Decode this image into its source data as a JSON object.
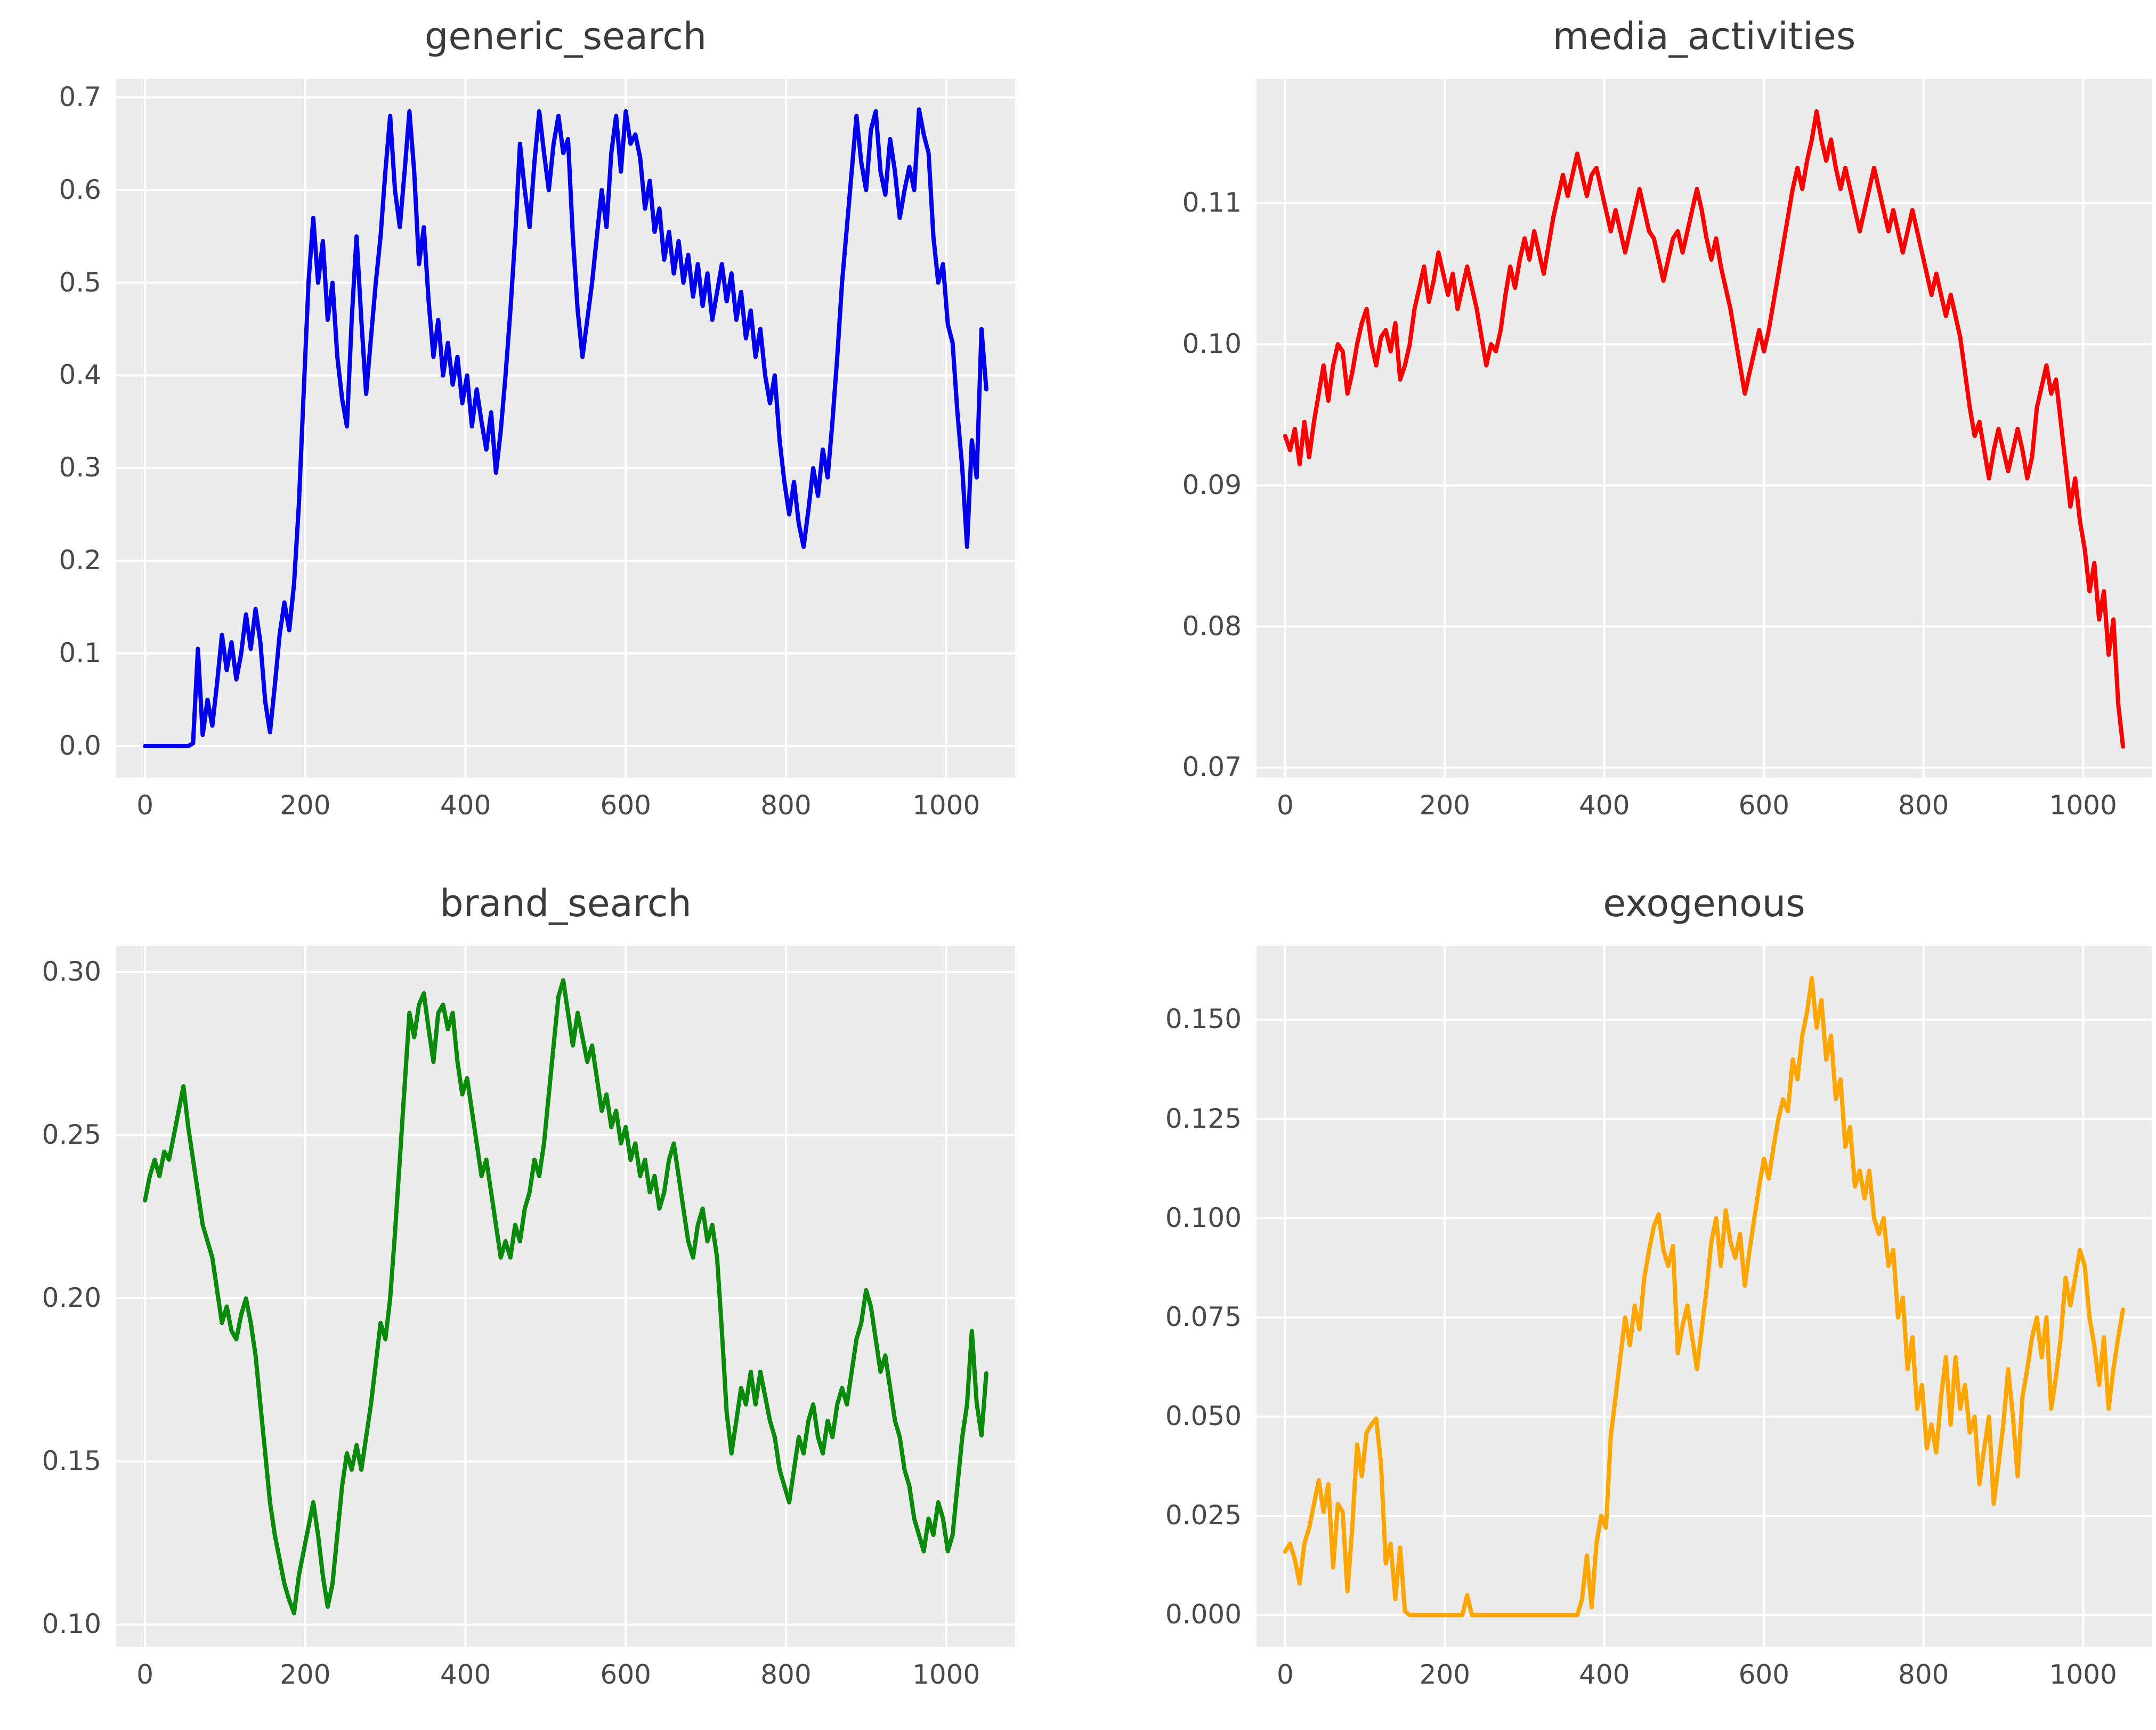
{
  "figure": {
    "background": "#ffffff",
    "plot_background": "#ebebeb",
    "grid_color": "#ffffff",
    "text_color": "#3b3b3b",
    "tick_color": "#494949"
  },
  "chart_data": [
    {
      "type": "line",
      "title": "generic_search",
      "color": "#0000ee",
      "xlabel": "",
      "ylabel": "",
      "legend": null,
      "grid": true,
      "x_start": 0,
      "x_step": 6,
      "xlim": [
        -36,
        1086
      ],
      "ylim": [
        -0.034,
        0.72
      ],
      "xtick_values": [
        0,
        200,
        400,
        600,
        800,
        1000
      ],
      "xtick_labels": [
        "0",
        "200",
        "400",
        "600",
        "800",
        "1000"
      ],
      "ytick_values": [
        0.0,
        0.1,
        0.2,
        0.3,
        0.4,
        0.5,
        0.6,
        0.7
      ],
      "ytick_labels": [
        "0.0",
        "0.1",
        "0.2",
        "0.3",
        "0.4",
        "0.5",
        "0.6",
        "0.7"
      ],
      "values": [
        0,
        0,
        0,
        0,
        0,
        0,
        0,
        0,
        0,
        0,
        0.003,
        0.105,
        0.012,
        0.05,
        0.022,
        0.068,
        0.12,
        0.082,
        0.112,
        0.072,
        0.1,
        0.142,
        0.105,
        0.148,
        0.112,
        0.048,
        0.015,
        0.065,
        0.12,
        0.155,
        0.125,
        0.175,
        0.26,
        0.38,
        0.5,
        0.57,
        0.5,
        0.545,
        0.46,
        0.5,
        0.42,
        0.375,
        0.345,
        0.46,
        0.55,
        0.46,
        0.38,
        0.44,
        0.5,
        0.55,
        0.62,
        0.68,
        0.6,
        0.56,
        0.62,
        0.685,
        0.62,
        0.52,
        0.56,
        0.48,
        0.42,
        0.46,
        0.4,
        0.435,
        0.39,
        0.42,
        0.37,
        0.4,
        0.345,
        0.385,
        0.35,
        0.32,
        0.36,
        0.295,
        0.34,
        0.4,
        0.47,
        0.55,
        0.65,
        0.6,
        0.56,
        0.63,
        0.685,
        0.64,
        0.6,
        0.65,
        0.68,
        0.64,
        0.655,
        0.55,
        0.47,
        0.42,
        0.46,
        0.5,
        0.55,
        0.6,
        0.56,
        0.64,
        0.68,
        0.62,
        0.685,
        0.65,
        0.66,
        0.635,
        0.58,
        0.61,
        0.555,
        0.58,
        0.525,
        0.555,
        0.51,
        0.545,
        0.5,
        0.53,
        0.485,
        0.52,
        0.475,
        0.51,
        0.46,
        0.49,
        0.52,
        0.48,
        0.51,
        0.46,
        0.49,
        0.44,
        0.47,
        0.42,
        0.45,
        0.4,
        0.37,
        0.4,
        0.33,
        0.285,
        0.25,
        0.285,
        0.24,
        0.215,
        0.255,
        0.3,
        0.27,
        0.32,
        0.29,
        0.35,
        0.42,
        0.5,
        0.56,
        0.62,
        0.68,
        0.63,
        0.6,
        0.665,
        0.685,
        0.62,
        0.595,
        0.655,
        0.62,
        0.57,
        0.6,
        0.625,
        0.6,
        0.687,
        0.66,
        0.64,
        0.55,
        0.5,
        0.52,
        0.455,
        0.435,
        0.36,
        0.3,
        0.215,
        0.33,
        0.29,
        0.45,
        0.385
      ]
    },
    {
      "type": "line",
      "title": "media_activities",
      "color": "#ff0000",
      "xlabel": "",
      "ylabel": "",
      "legend": null,
      "grid": true,
      "x_start": 0,
      "x_step": 6,
      "xlim": [
        -36,
        1086
      ],
      "ylim": [
        0.0693,
        0.1188
      ],
      "xtick_values": [
        0,
        200,
        400,
        600,
        800,
        1000
      ],
      "xtick_labels": [
        "0",
        "200",
        "400",
        "600",
        "800",
        "1000"
      ],
      "ytick_values": [
        0.07,
        0.08,
        0.09,
        0.1,
        0.11
      ],
      "ytick_labels": [
        "0.07",
        "0.08",
        "0.09",
        "0.10",
        "0.11"
      ],
      "values": [
        0.0935,
        0.0925,
        0.094,
        0.0915,
        0.0945,
        0.092,
        0.0945,
        0.0965,
        0.0985,
        0.096,
        0.0985,
        0.1,
        0.0995,
        0.0965,
        0.098,
        0.1,
        0.1015,
        0.1025,
        0.1,
        0.0985,
        0.1005,
        0.101,
        0.0995,
        0.1015,
        0.0975,
        0.0985,
        0.1,
        0.1025,
        0.104,
        0.1055,
        0.103,
        0.1045,
        0.1065,
        0.105,
        0.1035,
        0.105,
        0.1025,
        0.104,
        0.1055,
        0.104,
        0.1025,
        0.1005,
        0.0985,
        0.1,
        0.0995,
        0.101,
        0.1035,
        0.1055,
        0.104,
        0.106,
        0.1075,
        0.106,
        0.108,
        0.1065,
        0.105,
        0.107,
        0.109,
        0.1105,
        0.112,
        0.1105,
        0.112,
        0.1135,
        0.112,
        0.1105,
        0.112,
        0.1125,
        0.111,
        0.1095,
        0.108,
        0.1095,
        0.108,
        0.1065,
        0.108,
        0.1095,
        0.111,
        0.1095,
        0.108,
        0.1075,
        0.106,
        0.1045,
        0.106,
        0.1075,
        0.108,
        0.1065,
        0.108,
        0.1095,
        0.111,
        0.1095,
        0.1075,
        0.106,
        0.1075,
        0.1055,
        0.104,
        0.1025,
        0.1005,
        0.0985,
        0.0965,
        0.098,
        0.0995,
        0.101,
        0.0995,
        0.101,
        0.103,
        0.105,
        0.107,
        0.109,
        0.111,
        0.1125,
        0.111,
        0.113,
        0.1145,
        0.1165,
        0.1145,
        0.113,
        0.1145,
        0.1125,
        0.111,
        0.1125,
        0.111,
        0.1095,
        0.108,
        0.1095,
        0.111,
        0.1125,
        0.111,
        0.1095,
        0.108,
        0.1095,
        0.108,
        0.1065,
        0.108,
        0.1095,
        0.108,
        0.1065,
        0.105,
        0.1035,
        0.105,
        0.1035,
        0.102,
        0.1035,
        0.102,
        0.1005,
        0.098,
        0.0955,
        0.0935,
        0.0945,
        0.0925,
        0.0905,
        0.0925,
        0.094,
        0.0925,
        0.091,
        0.0925,
        0.094,
        0.0925,
        0.0905,
        0.092,
        0.0955,
        0.097,
        0.0985,
        0.0965,
        0.0975,
        0.0945,
        0.0915,
        0.0885,
        0.0905,
        0.0875,
        0.0855,
        0.0825,
        0.0845,
        0.0805,
        0.0825,
        0.078,
        0.0805,
        0.0745,
        0.0715
      ]
    },
    {
      "type": "line",
      "title": "brand_search",
      "color": "#0a8a0a",
      "xlabel": "",
      "ylabel": "",
      "legend": null,
      "grid": true,
      "x_start": 0,
      "x_step": 6,
      "xlim": [
        -36,
        1086
      ],
      "ylim": [
        0.0932,
        0.308
      ],
      "xtick_values": [
        0,
        200,
        400,
        600,
        800,
        1000
      ],
      "xtick_labels": [
        "0",
        "200",
        "400",
        "600",
        "800",
        "1000"
      ],
      "ytick_values": [
        0.1,
        0.15,
        0.2,
        0.25,
        0.3
      ],
      "ytick_labels": [
        "0.10",
        "0.15",
        "0.20",
        "0.25",
        "0.30"
      ],
      "values": [
        0.23,
        0.2375,
        0.2425,
        0.2375,
        0.245,
        0.2425,
        0.25,
        0.2575,
        0.265,
        0.2525,
        0.2425,
        0.2325,
        0.2225,
        0.2175,
        0.2125,
        0.2025,
        0.1925,
        0.1975,
        0.19,
        0.1875,
        0.195,
        0.2,
        0.1925,
        0.1825,
        0.1675,
        0.1525,
        0.1375,
        0.1275,
        0.12,
        0.1125,
        0.1075,
        0.1035,
        0.115,
        0.1225,
        0.13,
        0.1375,
        0.1275,
        0.115,
        0.1055,
        0.1125,
        0.1275,
        0.1425,
        0.1525,
        0.1475,
        0.155,
        0.1475,
        0.1575,
        0.1675,
        0.18,
        0.1925,
        0.1875,
        0.2,
        0.22,
        0.2425,
        0.265,
        0.2875,
        0.28,
        0.29,
        0.2935,
        0.2825,
        0.2725,
        0.2875,
        0.29,
        0.2825,
        0.2875,
        0.2725,
        0.2625,
        0.2675,
        0.2575,
        0.2475,
        0.2375,
        0.2425,
        0.2325,
        0.2225,
        0.2125,
        0.2175,
        0.2125,
        0.2225,
        0.2175,
        0.2275,
        0.2325,
        0.2425,
        0.2375,
        0.2475,
        0.2625,
        0.2775,
        0.2925,
        0.2975,
        0.2875,
        0.2775,
        0.2875,
        0.28,
        0.2725,
        0.2775,
        0.2675,
        0.2575,
        0.2625,
        0.2525,
        0.2575,
        0.2475,
        0.2525,
        0.2425,
        0.2475,
        0.2375,
        0.2425,
        0.2325,
        0.2375,
        0.2275,
        0.2325,
        0.2425,
        0.2475,
        0.2375,
        0.2275,
        0.2175,
        0.2125,
        0.2225,
        0.2275,
        0.2175,
        0.2225,
        0.2125,
        0.19,
        0.165,
        0.1525,
        0.1625,
        0.1725,
        0.1675,
        0.1775,
        0.1675,
        0.1775,
        0.17,
        0.1625,
        0.1575,
        0.1475,
        0.1425,
        0.1375,
        0.1475,
        0.1575,
        0.1525,
        0.1625,
        0.1675,
        0.1575,
        0.1525,
        0.1625,
        0.1575,
        0.1675,
        0.1725,
        0.1675,
        0.1775,
        0.1875,
        0.1925,
        0.2025,
        0.1975,
        0.1875,
        0.1775,
        0.1825,
        0.1725,
        0.1625,
        0.1575,
        0.1475,
        0.1425,
        0.1325,
        0.1275,
        0.1225,
        0.1325,
        0.1275,
        0.1375,
        0.1325,
        0.1225,
        0.1275,
        0.1425,
        0.1575,
        0.1675,
        0.19,
        0.168,
        0.158,
        0.177
      ]
    },
    {
      "type": "line",
      "title": "exogenous",
      "color": "#ffa500",
      "xlabel": "",
      "ylabel": "",
      "legend": null,
      "grid": true,
      "x_start": 0,
      "x_step": 6,
      "xlim": [
        -36,
        1086
      ],
      "ylim": [
        -0.008,
        0.1686
      ],
      "xtick_values": [
        0,
        200,
        400,
        600,
        800,
        1000
      ],
      "xtick_labels": [
        "0",
        "200",
        "400",
        "600",
        "800",
        "1000"
      ],
      "ytick_values": [
        0.0,
        0.025,
        0.05,
        0.075,
        0.1,
        0.125,
        0.15
      ],
      "ytick_labels": [
        "0.000",
        "0.025",
        "0.050",
        "0.075",
        "0.100",
        "0.125",
        "0.150"
      ],
      "values": [
        0.016,
        0.018,
        0.014,
        0.008,
        0.018,
        0.022,
        0.028,
        0.034,
        0.026,
        0.033,
        0.012,
        0.028,
        0.026,
        0.006,
        0.022,
        0.043,
        0.035,
        0.046,
        0.048,
        0.0495,
        0.038,
        0.013,
        0.018,
        0.004,
        0.017,
        0.001,
        0,
        0,
        0,
        0,
        0,
        0,
        0,
        0,
        0,
        0,
        0,
        0,
        0.005,
        0,
        0,
        0,
        0,
        0,
        0,
        0,
        0,
        0,
        0,
        0,
        0,
        0,
        0,
        0,
        0,
        0,
        0,
        0,
        0,
        0,
        0,
        0,
        0.004,
        0.015,
        0.002,
        0.018,
        0.025,
        0.022,
        0.045,
        0.055,
        0.065,
        0.075,
        0.068,
        0.078,
        0.072,
        0.085,
        0.092,
        0.098,
        0.101,
        0.092,
        0.088,
        0.093,
        0.066,
        0.073,
        0.078,
        0.07,
        0.062,
        0.072,
        0.082,
        0.094,
        0.1,
        0.088,
        0.102,
        0.094,
        0.09,
        0.096,
        0.083,
        0.092,
        0.1,
        0.108,
        0.115,
        0.11,
        0.118,
        0.125,
        0.13,
        0.127,
        0.14,
        0.135,
        0.146,
        0.152,
        0.1605,
        0.148,
        0.155,
        0.14,
        0.146,
        0.13,
        0.135,
        0.118,
        0.123,
        0.108,
        0.112,
        0.105,
        0.112,
        0.1,
        0.096,
        0.1,
        0.088,
        0.092,
        0.075,
        0.08,
        0.062,
        0.07,
        0.052,
        0.058,
        0.042,
        0.048,
        0.041,
        0.055,
        0.065,
        0.048,
        0.065,
        0.052,
        0.058,
        0.046,
        0.05,
        0.033,
        0.042,
        0.05,
        0.028,
        0.038,
        0.048,
        0.062,
        0.05,
        0.035,
        0.055,
        0.062,
        0.07,
        0.075,
        0.065,
        0.075,
        0.052,
        0.06,
        0.07,
        0.085,
        0.078,
        0.085,
        0.092,
        0.088,
        0.075,
        0.068,
        0.058,
        0.07,
        0.052,
        0.062,
        0.07,
        0.077
      ]
    }
  ]
}
